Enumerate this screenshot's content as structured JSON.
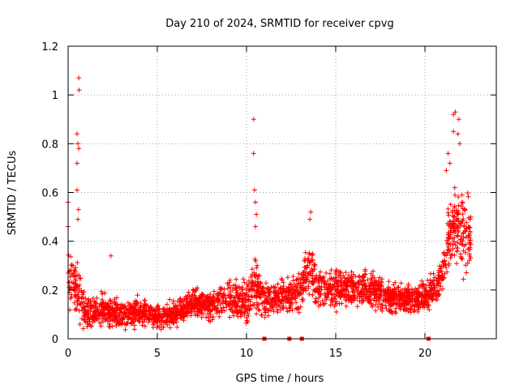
{
  "chart_data": {
    "type": "scatter",
    "title": "Day 210 of 2024, SRMTID for receiver cpvg",
    "xlabel": "GPS time / hours",
    "ylabel": "SRMTID / TECUs",
    "xlim": [
      0,
      24
    ],
    "ylim": [
      0,
      1.2
    ],
    "xticks": [
      0,
      5,
      10,
      15,
      20
    ],
    "xtick_labels": [
      "0",
      "5",
      "10",
      "15",
      "20"
    ],
    "yticks": [
      0,
      0.2,
      0.4,
      0.6,
      0.8,
      1,
      1.2
    ],
    "ytick_labels": [
      "0",
      "0.2",
      "0.4",
      "0.6",
      "0.8",
      "1",
      "1.2"
    ],
    "grid": true,
    "marker": "plus",
    "color": "#ff0000",
    "notable_points": [
      {
        "x": 0.0,
        "y": 0.56
      },
      {
        "x": 0.0,
        "y": 0.46
      },
      {
        "x": 0.5,
        "y": 0.84
      },
      {
        "x": 0.55,
        "y": 0.8
      },
      {
        "x": 0.6,
        "y": 0.78
      },
      {
        "x": 0.6,
        "y": 1.07
      },
      {
        "x": 0.62,
        "y": 1.02
      },
      {
        "x": 0.5,
        "y": 0.72
      },
      {
        "x": 0.5,
        "y": 0.61
      },
      {
        "x": 0.58,
        "y": 0.53
      },
      {
        "x": 0.55,
        "y": 0.49
      },
      {
        "x": 2.4,
        "y": 0.34
      },
      {
        "x": 10.4,
        "y": 0.9
      },
      {
        "x": 10.4,
        "y": 0.76
      },
      {
        "x": 10.45,
        "y": 0.61
      },
      {
        "x": 10.5,
        "y": 0.56
      },
      {
        "x": 10.55,
        "y": 0.51
      },
      {
        "x": 10.5,
        "y": 0.46
      },
      {
        "x": 13.6,
        "y": 0.52
      },
      {
        "x": 13.55,
        "y": 0.49
      },
      {
        "x": 21.6,
        "y": 0.92
      },
      {
        "x": 21.7,
        "y": 0.93
      },
      {
        "x": 21.9,
        "y": 0.9
      },
      {
        "x": 21.6,
        "y": 0.85
      },
      {
        "x": 21.85,
        "y": 0.84
      },
      {
        "x": 21.95,
        "y": 0.8
      },
      {
        "x": 21.3,
        "y": 0.76
      },
      {
        "x": 21.4,
        "y": 0.72
      },
      {
        "x": 21.2,
        "y": 0.69
      }
    ],
    "zero_points": [
      11.0,
      12.4,
      13.1,
      20.2
    ],
    "envelope": [
      {
        "x": 0.0,
        "base": 0.22,
        "spread": 0.16
      },
      {
        "x": 0.5,
        "base": 0.2,
        "spread": 0.16
      },
      {
        "x": 1.0,
        "base": 0.1,
        "spread": 0.09
      },
      {
        "x": 2.0,
        "base": 0.12,
        "spread": 0.09
      },
      {
        "x": 3.0,
        "base": 0.1,
        "spread": 0.08
      },
      {
        "x": 4.0,
        "base": 0.11,
        "spread": 0.08
      },
      {
        "x": 5.0,
        "base": 0.09,
        "spread": 0.07
      },
      {
        "x": 6.0,
        "base": 0.1,
        "spread": 0.07
      },
      {
        "x": 7.0,
        "base": 0.15,
        "spread": 0.07
      },
      {
        "x": 8.0,
        "base": 0.14,
        "spread": 0.08
      },
      {
        "x": 9.0,
        "base": 0.17,
        "spread": 0.09
      },
      {
        "x": 10.0,
        "base": 0.15,
        "spread": 0.12
      },
      {
        "x": 10.5,
        "base": 0.22,
        "spread": 0.16
      },
      {
        "x": 11.0,
        "base": 0.16,
        "spread": 0.09
      },
      {
        "x": 12.0,
        "base": 0.17,
        "spread": 0.09
      },
      {
        "x": 13.0,
        "base": 0.2,
        "spread": 0.11
      },
      {
        "x": 13.6,
        "base": 0.3,
        "spread": 0.14
      },
      {
        "x": 14.0,
        "base": 0.22,
        "spread": 0.12
      },
      {
        "x": 15.0,
        "base": 0.2,
        "spread": 0.11
      },
      {
        "x": 16.0,
        "base": 0.21,
        "spread": 0.1
      },
      {
        "x": 17.0,
        "base": 0.2,
        "spread": 0.1
      },
      {
        "x": 18.0,
        "base": 0.17,
        "spread": 0.09
      },
      {
        "x": 19.0,
        "base": 0.16,
        "spread": 0.08
      },
      {
        "x": 20.0,
        "base": 0.17,
        "spread": 0.09
      },
      {
        "x": 20.5,
        "base": 0.2,
        "spread": 0.08
      },
      {
        "x": 21.0,
        "base": 0.27,
        "spread": 0.1
      },
      {
        "x": 21.5,
        "base": 0.48,
        "spread": 0.22
      },
      {
        "x": 22.0,
        "base": 0.44,
        "spread": 0.22
      },
      {
        "x": 22.5,
        "base": 0.42,
        "spread": 0.18
      }
    ],
    "x_range": [
      0,
      22.6
    ],
    "n_points": 2600
  }
}
